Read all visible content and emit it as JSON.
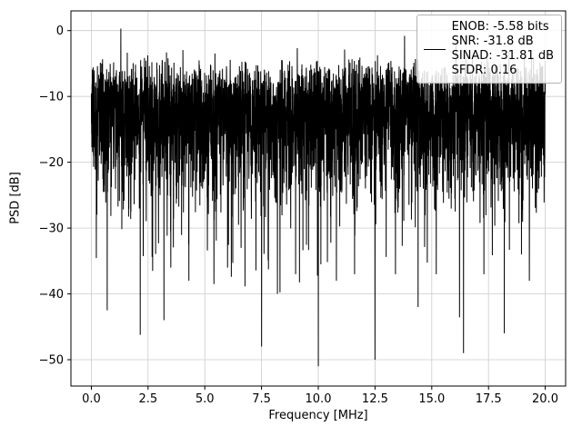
{
  "figure": {
    "background": "#ffffff",
    "axes_background": "#ffffff",
    "frame_color": "#000000",
    "grid_color": "#cccccc",
    "line_color": "#000000",
    "legend": {
      "position": "upper right",
      "handle": "black-line-sample",
      "entries": [
        "ENOB: -5.58 bits",
        "SNR: -31.8 dB",
        "SINAD: -31.81 dB",
        "SFDR: 0.16"
      ]
    }
  },
  "chart_data": {
    "type": "line",
    "title": "",
    "xlabel": "Frequency [MHz]",
    "ylabel": "PSD [dB]",
    "xlim": [
      -0.9,
      20.9
    ],
    "ylim": [
      -54,
      3
    ],
    "x_ticks": [
      0.0,
      2.5,
      5.0,
      7.5,
      10.0,
      12.5,
      15.0,
      17.5,
      20.0
    ],
    "x_tick_labels": [
      "0.0",
      "2.5",
      "5.0",
      "7.5",
      "10.0",
      "12.5",
      "15.0",
      "17.5",
      "20.0"
    ],
    "y_ticks": [
      0,
      -10,
      -20,
      -30,
      -40,
      -50
    ],
    "y_tick_labels": [
      "0",
      "−10",
      "−20",
      "−30",
      "−40",
      "−50"
    ],
    "grid": true,
    "series": [
      {
        "name": "psd-noise-spectrum",
        "description": "Dense wideband noise PSD from 0 to 20 MHz; dB values follow an exponential power distribution forming a solid black band between about -35 dB and -2 dB with occasional deep notches to about -51 dB",
        "x_start": 0,
        "x_end": 20,
        "n_points": 4096,
        "offset_db": -11,
        "floor_db": -52,
        "stats": {
          "enob_bits": -5.58,
          "snr_db": -31.8,
          "sinad_db": -31.81,
          "sfdr": 0.16
        },
        "notable_extremes": [
          {
            "x": 0.7,
            "y": -42.5
          },
          {
            "x": 1.3,
            "y": 0.3
          },
          {
            "x": 2.7,
            "y": -36.5
          },
          {
            "x": 3.2,
            "y": -44
          },
          {
            "x": 3.5,
            "y": -36
          },
          {
            "x": 4.3,
            "y": -38
          },
          {
            "x": 5.4,
            "y": -38.5
          },
          {
            "x": 6.0,
            "y": -36
          },
          {
            "x": 6.6,
            "y": -33
          },
          {
            "x": 7.5,
            "y": -48
          },
          {
            "x": 8.2,
            "y": -40
          },
          {
            "x": 9.0,
            "y": -37
          },
          {
            "x": 10.0,
            "y": -51
          },
          {
            "x": 10.8,
            "y": -38
          },
          {
            "x": 11.6,
            "y": -37
          },
          {
            "x": 12.5,
            "y": -50
          },
          {
            "x": 13.4,
            "y": -37
          },
          {
            "x": 13.8,
            "y": -0.8
          },
          {
            "x": 14.4,
            "y": -42
          },
          {
            "x": 15.2,
            "y": -37
          },
          {
            "x": 16.4,
            "y": -49
          },
          {
            "x": 17.3,
            "y": -37
          },
          {
            "x": 18.2,
            "y": -46
          },
          {
            "x": 19.3,
            "y": -38
          }
        ]
      }
    ]
  }
}
